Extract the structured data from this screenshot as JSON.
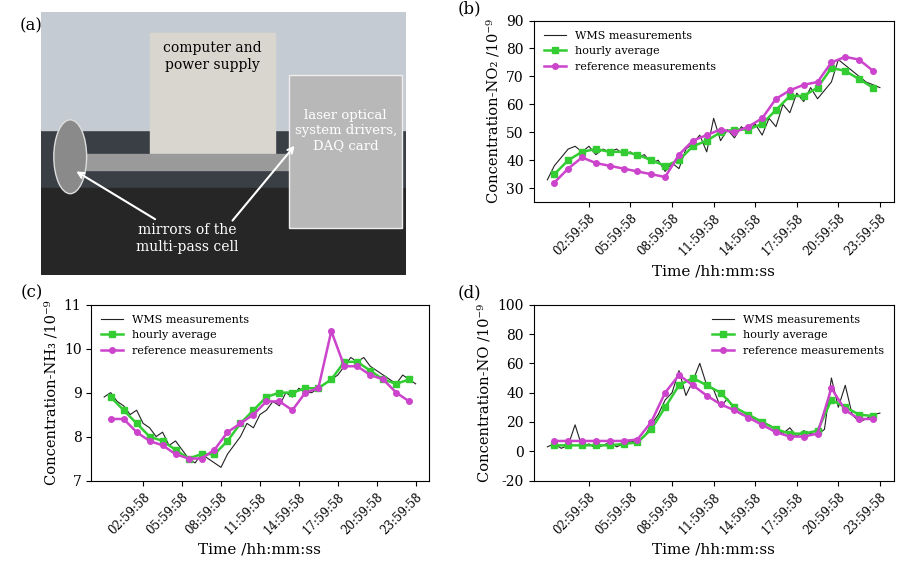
{
  "chart_data": [
    {
      "type": "photo",
      "title": "(a)",
      "annotations": [
        "computer and\npower supply",
        "mirrors of the\nmulti-pass cell",
        "laser optical\nsystem drivers,\nDAQ card"
      ]
    },
    {
      "type": "line",
      "title": "(b)",
      "x_label": "Time /hh:mm:ss",
      "y_label": "Concentration-NO₂ /10⁻⁹",
      "xlim": [
        -1,
        25
      ],
      "ylim": [
        25,
        90
      ],
      "xticks": [
        {
          "value": 2.9994,
          "label": "02:59:58"
        },
        {
          "value": 5.9994,
          "label": "05:59:58"
        },
        {
          "value": 8.9994,
          "label": "08:59:58"
        },
        {
          "value": 11.9994,
          "label": "11:59:58"
        },
        {
          "value": 14.9994,
          "label": "14:59:58"
        },
        {
          "value": 17.9994,
          "label": "17:59:58"
        },
        {
          "value": 20.9994,
          "label": "20:59:58"
        },
        {
          "value": 23.9994,
          "label": "23:59:58"
        }
      ],
      "yticks": [
        30,
        40,
        50,
        60,
        70,
        80,
        90
      ],
      "legend": "upper left",
      "series": [
        {
          "name": "WMS measurements",
          "color": "#222222",
          "marker": "none",
          "line_style": "solid",
          "x": [
            0,
            0.5,
            1,
            1.5,
            2,
            2.5,
            3,
            3.5,
            4,
            4.5,
            5,
            5.5,
            6,
            6.5,
            7,
            7.5,
            8,
            8.5,
            9,
            9.5,
            10,
            10.5,
            11,
            11.5,
            12,
            12.5,
            13,
            13.5,
            14,
            14.5,
            15,
            15.5,
            16,
            16.5,
            17,
            17.5,
            18,
            18.5,
            19,
            19.5,
            20,
            20.5,
            21,
            21.5,
            22,
            22.5,
            23,
            23.5,
            24
          ],
          "values": [
            33,
            38,
            41,
            44,
            45,
            43,
            45,
            42,
            44,
            43,
            44,
            42,
            43,
            41,
            42,
            39,
            40,
            36,
            39,
            37,
            44,
            46,
            49,
            43,
            55,
            47,
            51,
            48,
            52,
            50,
            53,
            49,
            55,
            52,
            60,
            57,
            64,
            61,
            66,
            62,
            65,
            68,
            76,
            74,
            72,
            70,
            68,
            67,
            66
          ]
        },
        {
          "name": "hourly average",
          "color": "#33cc33",
          "marker": "square",
          "line_style": "solid",
          "x": [
            0.5,
            1.5,
            2.5,
            3.5,
            4.5,
            5.5,
            6.5,
            7.5,
            8.5,
            9.5,
            10.5,
            11.5,
            12.5,
            13.5,
            14.5,
            15.5,
            16.5,
            17.5,
            18.5,
            19.5,
            20.5,
            21.5,
            22.5,
            23.5
          ],
          "values": [
            35,
            40,
            43,
            44,
            43,
            43,
            42,
            40,
            38,
            40,
            45,
            47,
            50,
            51,
            51,
            53,
            58,
            63,
            63,
            66,
            73,
            72,
            69,
            66
          ]
        },
        {
          "name": "reference measurements",
          "color": "#cc44cc",
          "marker": "circle",
          "line_style": "solid",
          "x": [
            0.5,
            1.5,
            2.5,
            3.5,
            4.5,
            5.5,
            6.5,
            7.5,
            8.5,
            9.5,
            10.5,
            11.5,
            12.5,
            13.5,
            14.5,
            15.5,
            16.5,
            17.5,
            18.5,
            19.5,
            20.5,
            21.5,
            22.5,
            23.5
          ],
          "values": [
            32,
            37,
            41,
            39,
            38,
            37,
            36,
            35,
            34,
            42,
            47,
            49,
            51,
            50,
            52,
            55,
            62,
            65,
            67,
            68,
            75,
            77,
            76,
            72
          ]
        }
      ]
    },
    {
      "type": "line",
      "title": "(c)",
      "x_label": "Time /hh:mm:ss",
      "y_label": "Concentration-NH₃ /10⁻⁹",
      "xlim": [
        -1,
        25
      ],
      "ylim": [
        7,
        11
      ],
      "xticks": [
        {
          "value": 2.9994,
          "label": "02:59:58"
        },
        {
          "value": 5.9994,
          "label": "05:59:58"
        },
        {
          "value": 8.9994,
          "label": "08:59:58"
        },
        {
          "value": 11.9994,
          "label": "11:59:58"
        },
        {
          "value": 14.9994,
          "label": "14:59:58"
        },
        {
          "value": 17.9994,
          "label": "17:59:58"
        },
        {
          "value": 20.9994,
          "label": "20:59:58"
        },
        {
          "value": 23.9994,
          "label": "23:59:58"
        }
      ],
      "yticks": [
        7,
        8,
        9,
        10,
        11
      ],
      "legend": "upper left",
      "series": [
        {
          "name": "WMS measurements",
          "color": "#222222",
          "marker": "none",
          "line_style": "solid",
          "x": [
            0,
            0.5,
            1,
            1.5,
            2,
            2.5,
            3,
            3.5,
            4,
            4.5,
            5,
            5.5,
            6,
            6.5,
            7,
            7.5,
            8,
            8.5,
            9,
            9.5,
            10,
            10.5,
            11,
            11.5,
            12,
            12.5,
            13,
            13.5,
            14,
            14.5,
            15,
            15.5,
            16,
            16.5,
            17,
            17.5,
            18,
            18.5,
            19,
            19.5,
            20,
            20.5,
            21,
            21.5,
            22,
            22.5,
            23,
            23.5,
            24
          ],
          "values": [
            8.9,
            9.0,
            8.8,
            8.7,
            8.5,
            8.6,
            8.3,
            8.2,
            8.0,
            8.1,
            7.8,
            7.9,
            7.7,
            7.5,
            7.4,
            7.6,
            7.5,
            7.4,
            7.3,
            7.6,
            7.8,
            8.0,
            8.3,
            8.2,
            8.5,
            8.6,
            8.8,
            8.7,
            9.0,
            8.9,
            9.1,
            9.0,
            9.0,
            9.1,
            9.2,
            9.3,
            9.4,
            9.6,
            9.8,
            9.7,
            9.8,
            9.6,
            9.5,
            9.4,
            9.3,
            9.2,
            9.4,
            9.3,
            9.2
          ]
        },
        {
          "name": "hourly average",
          "color": "#33cc33",
          "marker": "square",
          "line_style": "solid",
          "x": [
            0.5,
            1.5,
            2.5,
            3.5,
            4.5,
            5.5,
            6.5,
            7.5,
            8.5,
            9.5,
            10.5,
            11.5,
            12.5,
            13.5,
            14.5,
            15.5,
            16.5,
            17.5,
            18.5,
            19.5,
            20.5,
            21.5,
            22.5,
            23.5
          ],
          "values": [
            8.9,
            8.6,
            8.3,
            8.0,
            7.9,
            7.7,
            7.5,
            7.6,
            7.6,
            7.9,
            8.3,
            8.6,
            8.9,
            9.0,
            9.0,
            9.1,
            9.1,
            9.3,
            9.7,
            9.7,
            9.5,
            9.3,
            9.2,
            9.3
          ]
        },
        {
          "name": "reference measurements",
          "color": "#cc44cc",
          "marker": "circle",
          "line_style": "solid",
          "x": [
            0.5,
            1.5,
            2.5,
            3.5,
            4.5,
            5.5,
            6.5,
            7.5,
            8.5,
            9.5,
            10.5,
            11.5,
            12.5,
            13.5,
            14.5,
            15.5,
            16.5,
            17.5,
            18.5,
            19.5,
            20.5,
            21.5,
            22.5,
            23.5
          ],
          "values": [
            8.4,
            8.4,
            8.1,
            7.9,
            7.8,
            7.6,
            7.5,
            7.5,
            7.7,
            8.1,
            8.3,
            8.5,
            8.8,
            8.8,
            8.6,
            9.0,
            9.1,
            10.4,
            9.6,
            9.6,
            9.4,
            9.3,
            9.0,
            8.8
          ]
        }
      ]
    },
    {
      "type": "line",
      "title": "(d)",
      "x_label": "Time /hh:mm:ss",
      "y_label": "Concentration-NO /10⁻⁹",
      "xlim": [
        -1,
        25
      ],
      "ylim": [
        -20,
        100
      ],
      "xticks": [
        {
          "value": 2.9994,
          "label": "02:59:58"
        },
        {
          "value": 5.9994,
          "label": "05:59:58"
        },
        {
          "value": 8.9994,
          "label": "08:59:58"
        },
        {
          "value": 11.9994,
          "label": "11:59:58"
        },
        {
          "value": 14.9994,
          "label": "14:59:58"
        },
        {
          "value": 17.9994,
          "label": "17:59:58"
        },
        {
          "value": 20.9994,
          "label": "20:59:58"
        },
        {
          "value": 23.9994,
          "label": "23:59:58"
        }
      ],
      "yticks": [
        -20,
        0,
        20,
        40,
        60,
        80,
        100
      ],
      "legend": "upper right",
      "series": [
        {
          "name": "WMS measurements",
          "color": "#222222",
          "marker": "none",
          "line_style": "solid",
          "x": [
            0,
            0.5,
            1,
            1.5,
            2,
            2.5,
            3,
            3.5,
            4,
            4.5,
            5,
            5.5,
            6,
            6.5,
            7,
            7.5,
            8,
            8.5,
            9,
            9.5,
            10,
            10.5,
            11,
            11.5,
            12,
            12.5,
            13,
            13.5,
            14,
            14.5,
            15,
            15.5,
            16,
            16.5,
            17,
            17.5,
            18,
            18.5,
            19,
            19.5,
            20,
            20.5,
            21,
            21.5,
            22,
            22.5,
            23,
            23.5,
            24
          ],
          "values": [
            3,
            5,
            2,
            4,
            18,
            3,
            5,
            2,
            4,
            6,
            3,
            5,
            7,
            6,
            10,
            18,
            25,
            35,
            40,
            55,
            38,
            48,
            60,
            45,
            42,
            30,
            36,
            28,
            25,
            24,
            22,
            20,
            18,
            15,
            12,
            16,
            10,
            14,
            12,
            11,
            15,
            50,
            30,
            45,
            25,
            20,
            22,
            25,
            26
          ]
        },
        {
          "name": "hourly average",
          "color": "#33cc33",
          "marker": "square",
          "line_style": "solid",
          "x": [
            0.5,
            1.5,
            2.5,
            3.5,
            4.5,
            5.5,
            6.5,
            7.5,
            8.5,
            9.5,
            10.5,
            11.5,
            12.5,
            13.5,
            14.5,
            15.5,
            16.5,
            17.5,
            18.5,
            19.5,
            20.5,
            21.5,
            22.5,
            23.5
          ],
          "values": [
            4,
            4,
            4,
            4,
            4,
            5,
            6,
            15,
            30,
            45,
            50,
            45,
            40,
            30,
            25,
            20,
            15,
            12,
            12,
            14,
            35,
            30,
            25,
            24
          ]
        },
        {
          "name": "reference measurements",
          "color": "#cc44cc",
          "marker": "circle",
          "line_style": "solid",
          "x": [
            0.5,
            1.5,
            2.5,
            3.5,
            4.5,
            5.5,
            6.5,
            7.5,
            8.5,
            9.5,
            10.5,
            11.5,
            12.5,
            13.5,
            14.5,
            15.5,
            16.5,
            17.5,
            18.5,
            19.5,
            20.5,
            21.5,
            22.5,
            23.5
          ],
          "values": [
            7,
            7,
            7,
            7,
            7,
            7,
            8,
            20,
            40,
            52,
            45,
            38,
            32,
            28,
            23,
            18,
            13,
            10,
            10,
            12,
            43,
            28,
            22,
            22
          ]
        }
      ]
    }
  ]
}
